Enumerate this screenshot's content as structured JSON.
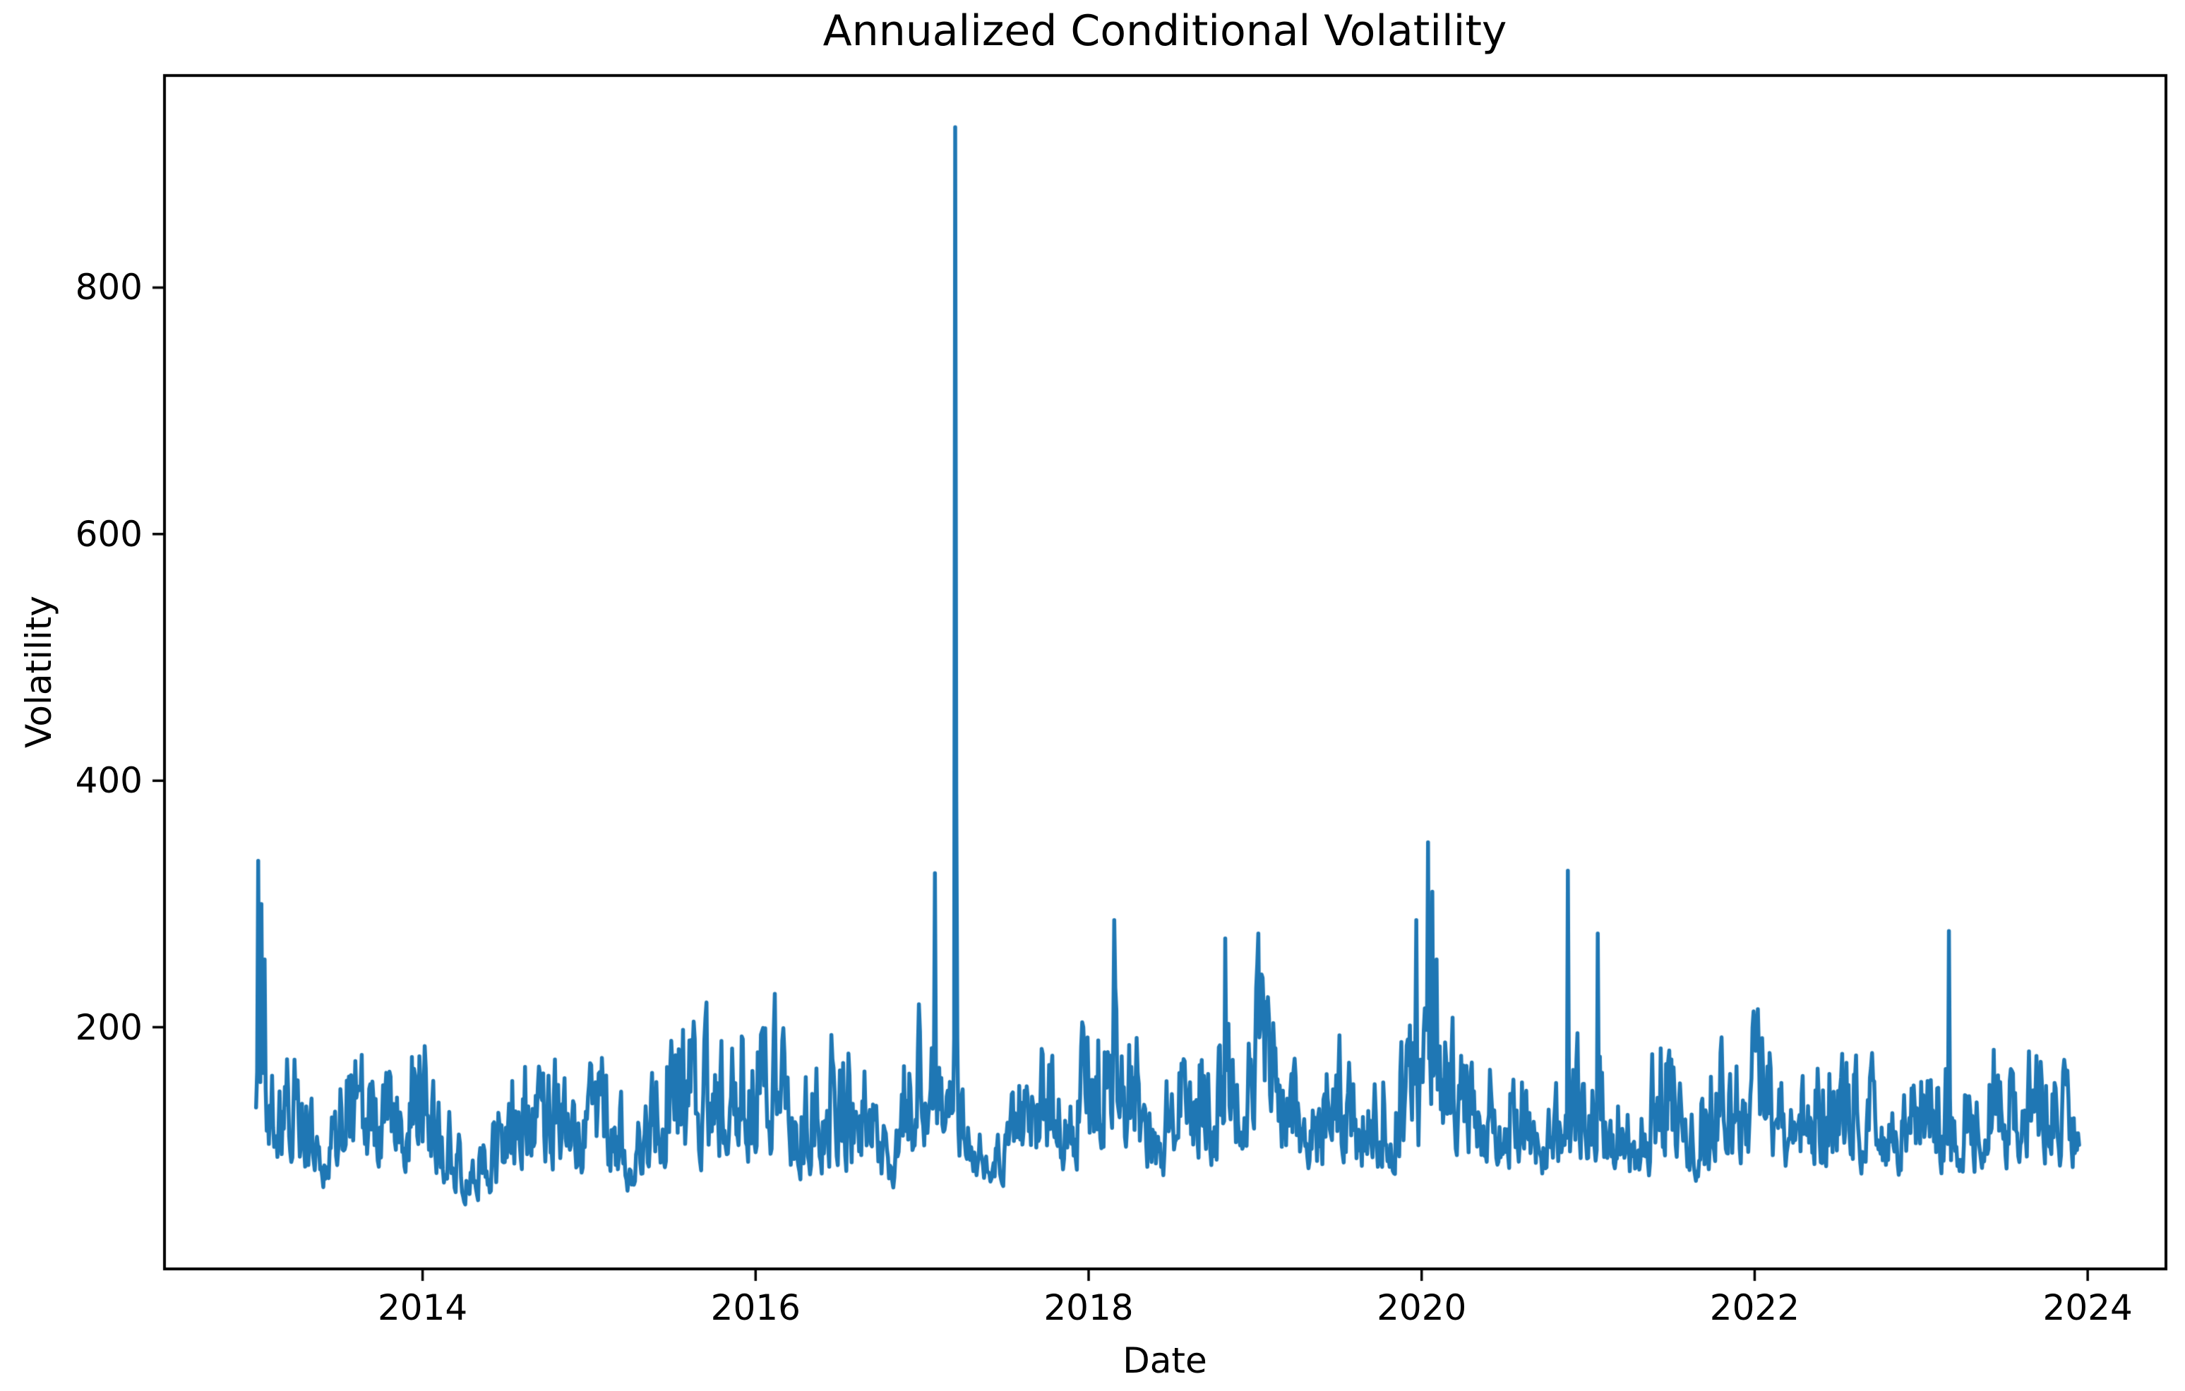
{
  "figure": {
    "title": "Annualized Conditional Volatility",
    "xlabel": "Date",
    "ylabel": "Volatility",
    "background_color": "#ffffff",
    "text_color": "#000000",
    "spine_color": "#000000"
  },
  "chart_data": {
    "type": "line",
    "title": "Annualized Conditional Volatility",
    "xlabel": "Date",
    "ylabel": "Volatility",
    "legend": null,
    "grid": false,
    "line_color": "#1f77b4",
    "x_ticks": [
      2014,
      2016,
      2018,
      2020,
      2022,
      2024
    ],
    "y_ticks": [
      200,
      400,
      600,
      800
    ],
    "xlim": [
      2012.45,
      2024.47
    ],
    "ylim": [
      4,
      972
    ],
    "series": [
      {
        "name": "annualized conditional volatility",
        "data_start": 2013.0,
        "data_end": 2023.95,
        "max_value": 930,
        "max_at": 2017.2,
        "min_value": 45,
        "sampling": {
          "points_per_year": 156,
          "seed": 20170213
        },
        "envelope_high": [
          [
            2013.0,
            225
          ],
          [
            2013.06,
            195
          ],
          [
            2013.12,
            175
          ],
          [
            2013.2,
            200
          ],
          [
            2013.27,
            205
          ],
          [
            2013.33,
            150
          ],
          [
            2013.4,
            112
          ],
          [
            2013.47,
            160
          ],
          [
            2013.53,
            185
          ],
          [
            2013.6,
            216
          ],
          [
            2013.68,
            190
          ],
          [
            2013.76,
            170
          ],
          [
            2013.84,
            185
          ],
          [
            2013.92,
            215
          ],
          [
            2013.99,
            232
          ],
          [
            2014.06,
            175
          ],
          [
            2014.15,
            150
          ],
          [
            2014.25,
            122
          ],
          [
            2014.35,
            118
          ],
          [
            2014.45,
            145
          ],
          [
            2014.55,
            200
          ],
          [
            2014.62,
            215
          ],
          [
            2014.7,
            175
          ],
          [
            2014.8,
            190
          ],
          [
            2014.9,
            165
          ],
          [
            2015.03,
            223
          ],
          [
            2015.12,
            185
          ],
          [
            2015.22,
            150
          ],
          [
            2015.28,
            128
          ],
          [
            2015.36,
            170
          ],
          [
            2015.42,
            200
          ],
          [
            2015.52,
            240
          ],
          [
            2015.6,
            220
          ],
          [
            2015.7,
            225
          ],
          [
            2015.78,
            200
          ],
          [
            2015.88,
            255
          ],
          [
            2015.95,
            225
          ],
          [
            2016.03,
            235
          ],
          [
            2016.13,
            250
          ],
          [
            2016.22,
            175
          ],
          [
            2016.32,
            190
          ],
          [
            2016.4,
            205
          ],
          [
            2016.47,
            225
          ],
          [
            2016.55,
            205
          ],
          [
            2016.63,
            200
          ],
          [
            2016.7,
            160
          ],
          [
            2016.78,
            130
          ],
          [
            2016.85,
            150
          ],
          [
            2016.92,
            265
          ],
          [
            2017.0,
            265
          ],
          [
            2017.05,
            255
          ],
          [
            2017.12,
            240
          ],
          [
            2017.18,
            200
          ],
          [
            2017.24,
            185
          ],
          [
            2017.3,
            150
          ],
          [
            2017.37,
            120
          ],
          [
            2017.44,
            115
          ],
          [
            2017.5,
            160
          ],
          [
            2017.56,
            205
          ],
          [
            2017.65,
            205
          ],
          [
            2017.75,
            200
          ],
          [
            2017.83,
            190
          ],
          [
            2017.9,
            215
          ],
          [
            2017.95,
            235
          ],
          [
            2018.01,
            250
          ],
          [
            2018.08,
            260
          ],
          [
            2018.15,
            270
          ],
          [
            2018.22,
            260
          ],
          [
            2018.28,
            250
          ],
          [
            2018.34,
            180
          ],
          [
            2018.42,
            170
          ],
          [
            2018.5,
            190
          ],
          [
            2018.57,
            210
          ],
          [
            2018.65,
            225
          ],
          [
            2018.72,
            210
          ],
          [
            2018.8,
            235
          ],
          [
            2018.88,
            195
          ],
          [
            2018.95,
            235
          ],
          [
            2019.02,
            270
          ],
          [
            2019.09,
            262
          ],
          [
            2019.17,
            225
          ],
          [
            2019.25,
            195
          ],
          [
            2019.32,
            150
          ],
          [
            2019.4,
            190
          ],
          [
            2019.46,
            235
          ],
          [
            2019.54,
            210
          ],
          [
            2019.62,
            155
          ],
          [
            2019.7,
            185
          ],
          [
            2019.78,
            205
          ],
          [
            2019.84,
            240
          ],
          [
            2019.9,
            210
          ],
          [
            2019.97,
            250
          ],
          [
            2020.03,
            280
          ],
          [
            2020.1,
            260
          ],
          [
            2020.16,
            230
          ],
          [
            2020.22,
            215
          ],
          [
            2020.3,
            190
          ],
          [
            2020.4,
            188
          ],
          [
            2020.5,
            195
          ],
          [
            2020.58,
            207
          ],
          [
            2020.66,
            150
          ],
          [
            2020.74,
            130
          ],
          [
            2020.82,
            180
          ],
          [
            2020.88,
            230
          ],
          [
            2020.95,
            210
          ],
          [
            2021.02,
            200
          ],
          [
            2021.08,
            230
          ],
          [
            2021.15,
            185
          ],
          [
            2021.22,
            170
          ],
          [
            2021.3,
            140
          ],
          [
            2021.36,
            180
          ],
          [
            2021.42,
            240
          ],
          [
            2021.48,
            220
          ],
          [
            2021.55,
            190
          ],
          [
            2021.62,
            195
          ],
          [
            2021.7,
            185
          ],
          [
            2021.8,
            212
          ],
          [
            2021.88,
            190
          ],
          [
            2021.95,
            215
          ],
          [
            2022.02,
            225
          ],
          [
            2022.08,
            222
          ],
          [
            2022.15,
            185
          ],
          [
            2022.22,
            165
          ],
          [
            2022.3,
            185
          ],
          [
            2022.38,
            205
          ],
          [
            2022.45,
            210
          ],
          [
            2022.52,
            205
          ],
          [
            2022.6,
            212
          ],
          [
            2022.67,
            200
          ],
          [
            2022.74,
            165
          ],
          [
            2022.82,
            150
          ],
          [
            2022.9,
            158
          ],
          [
            2022.97,
            185
          ],
          [
            2023.05,
            195
          ],
          [
            2023.12,
            200
          ],
          [
            2023.18,
            205
          ],
          [
            2023.25,
            175
          ],
          [
            2023.32,
            155
          ],
          [
            2023.4,
            200
          ],
          [
            2023.46,
            222
          ],
          [
            2023.52,
            195
          ],
          [
            2023.58,
            185
          ],
          [
            2023.65,
            210
          ],
          [
            2023.7,
            235
          ],
          [
            2023.76,
            215
          ],
          [
            2023.82,
            200
          ],
          [
            2023.88,
            170
          ],
          [
            2023.95,
            155
          ]
        ],
        "envelope_low": [
          [
            2013.0,
            95
          ],
          [
            2013.1,
            70
          ],
          [
            2013.3,
            60
          ],
          [
            2013.45,
            55
          ],
          [
            2013.7,
            60
          ],
          [
            2014.0,
            62
          ],
          [
            2014.2,
            50
          ],
          [
            2014.35,
            47
          ],
          [
            2014.6,
            58
          ],
          [
            2015.0,
            60
          ],
          [
            2015.25,
            52
          ],
          [
            2015.6,
            62
          ],
          [
            2016.0,
            62
          ],
          [
            2016.5,
            60
          ],
          [
            2016.78,
            55
          ],
          [
            2017.0,
            68
          ],
          [
            2017.2,
            75
          ],
          [
            2017.4,
            62
          ],
          [
            2017.6,
            60
          ],
          [
            2018.0,
            65
          ],
          [
            2018.4,
            60
          ],
          [
            2019.0,
            68
          ],
          [
            2019.35,
            60
          ],
          [
            2019.8,
            62
          ],
          [
            2020.1,
            75
          ],
          [
            2020.5,
            63
          ],
          [
            2020.75,
            62
          ],
          [
            2021.0,
            65
          ],
          [
            2021.3,
            58
          ],
          [
            2022.0,
            62
          ],
          [
            2022.5,
            63
          ],
          [
            2023.0,
            62
          ],
          [
            2023.5,
            65
          ],
          [
            2023.95,
            68
          ]
        ],
        "spikes": [
          [
            2013.012,
            335
          ],
          [
            2013.03,
            300
          ],
          [
            2013.05,
            255
          ],
          [
            2017.077,
            325
          ],
          [
            2017.197,
            930
          ],
          [
            2018.155,
            287
          ],
          [
            2018.82,
            272
          ],
          [
            2019.02,
            276
          ],
          [
            2019.97,
            287
          ],
          [
            2020.04,
            350
          ],
          [
            2020.065,
            310
          ],
          [
            2020.09,
            255
          ],
          [
            2020.878,
            327
          ],
          [
            2021.06,
            276
          ],
          [
            2023.168,
            278
          ]
        ]
      }
    ]
  }
}
